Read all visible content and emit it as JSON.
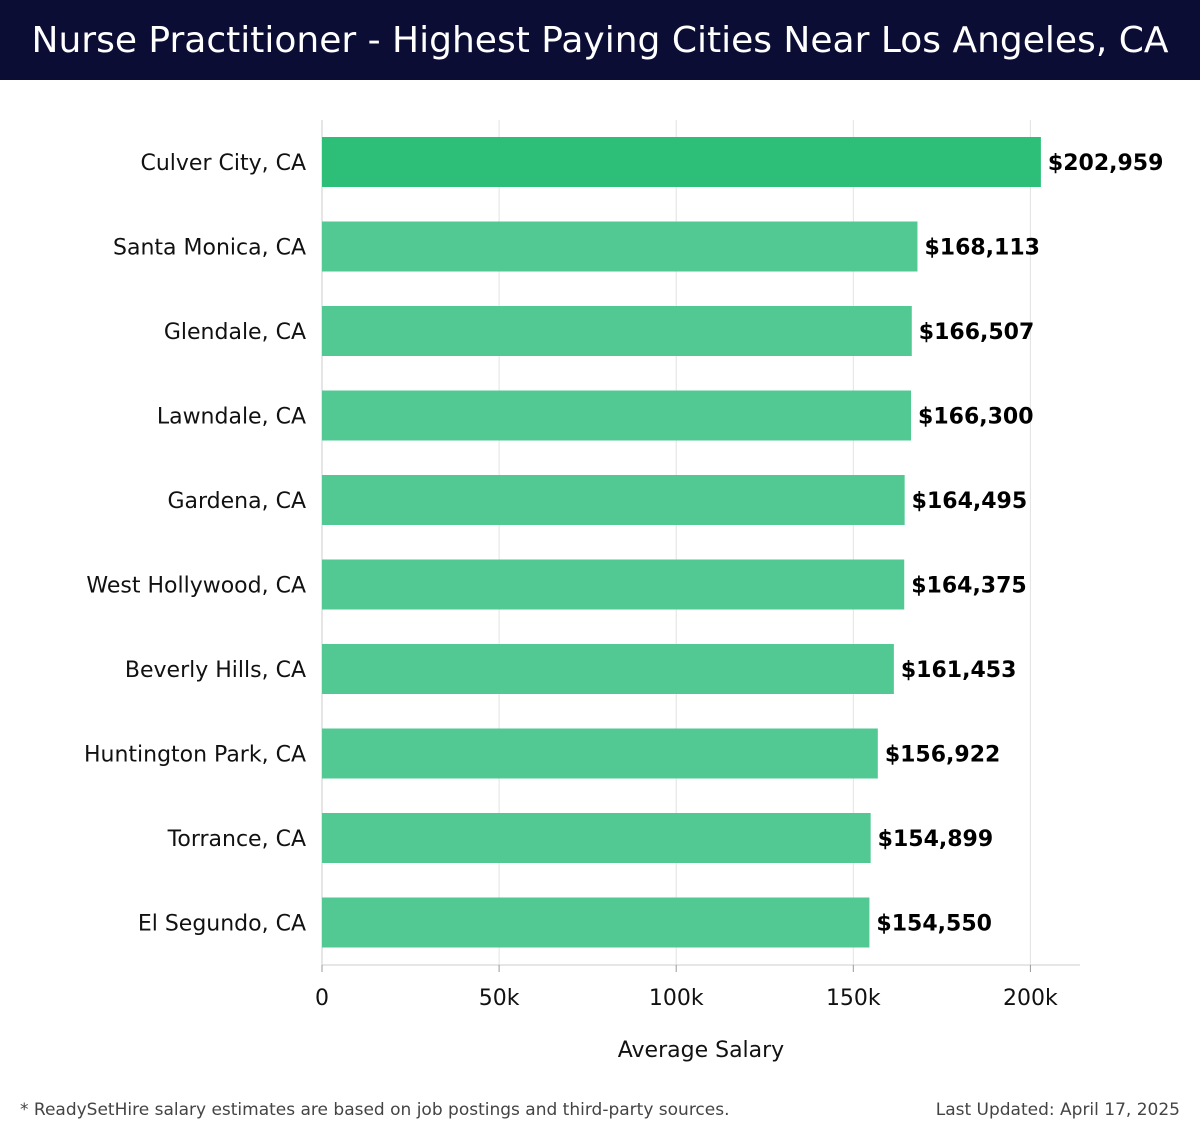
{
  "header": {
    "title": "Nurse Practitioner - Highest Paying Cities Near Los Angeles, CA"
  },
  "footer": {
    "note": "* ReadySetHire salary estimates are based on job postings and third-party sources.",
    "updated": "Last Updated: April 17, 2025"
  },
  "chart_data": {
    "type": "bar",
    "orientation": "horizontal",
    "title": "Nurse Practitioner - Highest Paying Cities Near Los Angeles, CA",
    "xlabel": "Average Salary",
    "ylabel": "",
    "xlim": [
      0,
      214000
    ],
    "xticks": [
      0,
      50000,
      100000,
      150000,
      200000
    ],
    "xtick_labels": [
      "0",
      "50k",
      "100k",
      "150k",
      "200k"
    ],
    "grid": "vertical",
    "categories": [
      "Culver City, CA",
      "Santa Monica, CA",
      "Glendale, CA",
      "Lawndale, CA",
      "Gardena, CA",
      "West Hollywood, CA",
      "Beverly Hills, CA",
      "Huntington Park, CA",
      "Torrance, CA",
      "El Segundo, CA"
    ],
    "values": [
      202959,
      168113,
      166507,
      166300,
      164495,
      164375,
      161453,
      156922,
      154899,
      154550
    ],
    "value_labels": [
      "$202,959",
      "$168,113",
      "$166,507",
      "$166,300",
      "$164,495",
      "$164,375",
      "$161,453",
      "$156,922",
      "$154,899",
      "$154,550"
    ],
    "colors": {
      "top_bar": "#2dbf78",
      "bar": "#52c993",
      "grid": "#e2e2e2",
      "axis": "#cccccc"
    }
  }
}
